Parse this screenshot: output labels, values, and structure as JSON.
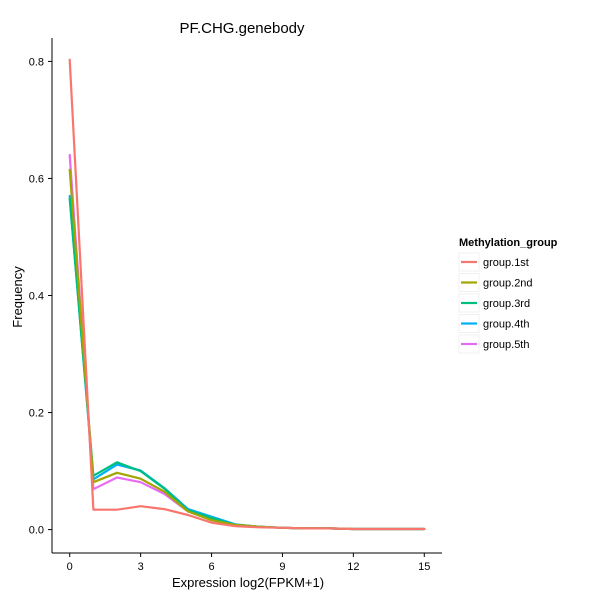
{
  "chart_data": {
    "type": "line",
    "title": "PF.CHG.genebody",
    "xlabel": "Expression log2(FPKM+1)",
    "ylabel": "Frequency",
    "xlim": [
      -0.75,
      15.75
    ],
    "ylim": [
      -0.04,
      0.84
    ],
    "xticks": [
      0,
      3,
      6,
      9,
      12,
      15
    ],
    "yticks": [
      0.0,
      0.2,
      0.4,
      0.6,
      0.8
    ],
    "xtick_labels": [
      "0",
      "3",
      "6",
      "9",
      "12",
      "15"
    ],
    "ytick_labels": [
      "0.0",
      "0.2",
      "0.4",
      "0.6",
      "0.8"
    ],
    "grid": false,
    "legend": {
      "title": "Methylation_group",
      "placement": "right"
    },
    "x": [
      0,
      1,
      2,
      3,
      4,
      5,
      6,
      7,
      8,
      9,
      10,
      11,
      12,
      13,
      14,
      15
    ],
    "series": [
      {
        "name": "group.1st",
        "color": "#F8766D",
        "values": [
          0.803,
          0.034,
          0.034,
          0.04,
          0.035,
          0.025,
          0.012,
          0.006,
          0.004,
          0.003,
          0.002,
          0.002,
          0.001,
          0.001,
          0.001,
          0.001
        ]
      },
      {
        "name": "group.2nd",
        "color": "#A3A500",
        "values": [
          0.615,
          0.081,
          0.097,
          0.087,
          0.065,
          0.031,
          0.016,
          0.008,
          0.005,
          0.003,
          0.002,
          0.002,
          0.001,
          0.001,
          0.001,
          0.001
        ]
      },
      {
        "name": "group.3rd",
        "color": "#00BF7D",
        "values": [
          0.565,
          0.092,
          0.115,
          0.1,
          0.07,
          0.033,
          0.02,
          0.008,
          0.005,
          0.003,
          0.002,
          0.002,
          0.001,
          0.001,
          0.001,
          0.001
        ]
      },
      {
        "name": "group.4th",
        "color": "#00B0F6",
        "values": [
          0.57,
          0.086,
          0.111,
          0.101,
          0.071,
          0.035,
          0.022,
          0.009,
          0.005,
          0.003,
          0.002,
          0.002,
          0.001,
          0.001,
          0.001,
          0.001
        ]
      },
      {
        "name": "group.5th",
        "color": "#E76BF3",
        "values": [
          0.64,
          0.069,
          0.089,
          0.081,
          0.061,
          0.031,
          0.017,
          0.008,
          0.005,
          0.003,
          0.002,
          0.002,
          0.001,
          0.001,
          0.001,
          0.001
        ]
      }
    ]
  }
}
